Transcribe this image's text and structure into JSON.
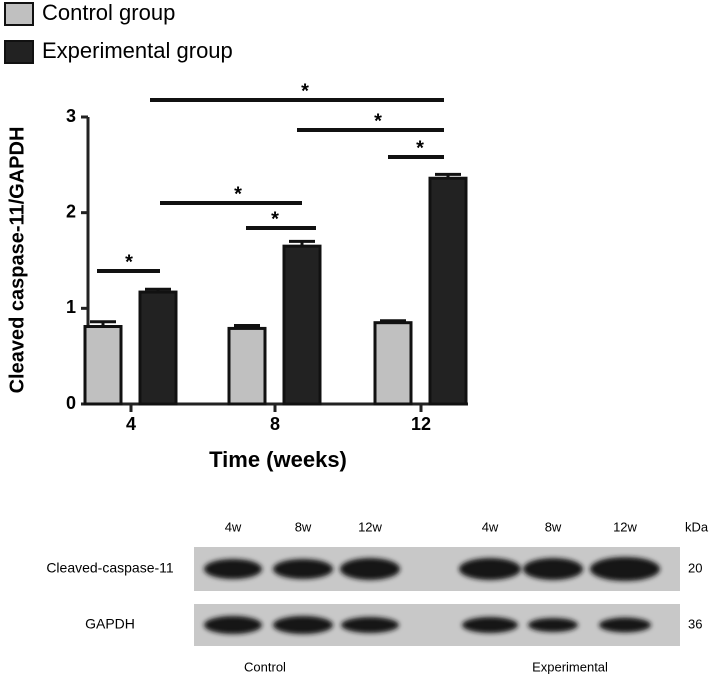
{
  "chart_data": {
    "type": "bar",
    "y_label": "Cleaved caspase-11/GAPDH",
    "x_label": "Time (weeks)",
    "categories": [
      "4",
      "8",
      "12"
    ],
    "series": [
      {
        "name": "Control group",
        "color": "#c0c0c0",
        "values": [
          0.81,
          0.79,
          0.85
        ],
        "errors": [
          0.05,
          0.03,
          0.02
        ]
      },
      {
        "name": "Experimental group",
        "color": "#222222",
        "values": [
          1.17,
          1.65,
          2.36
        ],
        "errors": [
          0.03,
          0.05,
          0.04
        ]
      }
    ],
    "ylim": [
      0,
      3
    ],
    "yticks": [
      0,
      1,
      2,
      3
    ],
    "annotations": [
      "*",
      "*",
      "*",
      "*",
      "*",
      "*"
    ]
  },
  "blot": {
    "lanes": [
      "4w",
      "8w",
      "12w",
      "4w",
      "8w",
      "12w"
    ],
    "unit": "kDa",
    "rows": [
      {
        "label": "Cleaved-caspase-11",
        "kda": "20"
      },
      {
        "label": "GAPDH",
        "kda": "36"
      }
    ],
    "groups": [
      "Control",
      "Experimental"
    ]
  }
}
